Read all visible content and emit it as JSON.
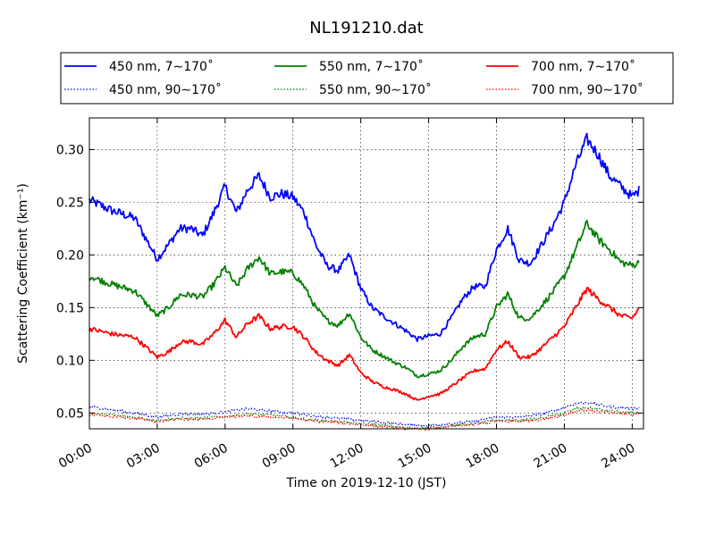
{
  "chart_data": {
    "type": "line",
    "title": "NL191210.dat",
    "xlabel": "Time on 2019-12-10 (JST)",
    "ylabel": "Scattering Coefficient (km⁻¹)",
    "xlim": [
      "00:00",
      "24:30"
    ],
    "ylim": [
      0.035,
      0.33
    ],
    "xticks": [
      "00:00",
      "03:00",
      "06:00",
      "09:00",
      "12:00",
      "15:00",
      "18:00",
      "21:00",
      "24:00"
    ],
    "yticks": [
      "0.05",
      "0.10",
      "0.15",
      "0.20",
      "0.25",
      "0.30"
    ],
    "grid": true,
    "legend_position": "top",
    "series": [
      {
        "name": "450 nm, 7∼170˚",
        "color": "#0000ff",
        "style": "solid",
        "x": [
          "00:00",
          "01:00",
          "02:00",
          "03:00",
          "03:30",
          "04:00",
          "04:30",
          "05:00",
          "05:30",
          "06:00",
          "06:30",
          "07:00",
          "07:30",
          "08:00",
          "08:30",
          "09:00",
          "09:30",
          "10:00",
          "10:30",
          "11:00",
          "11:30",
          "12:00",
          "12:30",
          "13:00",
          "13:30",
          "14:00",
          "14:30",
          "15:00",
          "15:30",
          "16:00",
          "16:30",
          "17:00",
          "17:30",
          "18:00",
          "18:30",
          "19:00",
          "19:30",
          "20:00",
          "20:30",
          "21:00",
          "21:30",
          "22:00",
          "22:30",
          "23:00",
          "23:30",
          "24:00",
          "24:20"
        ],
        "y": [
          0.252,
          0.242,
          0.235,
          0.196,
          0.21,
          0.225,
          0.225,
          0.218,
          0.24,
          0.265,
          0.24,
          0.262,
          0.275,
          0.255,
          0.258,
          0.255,
          0.24,
          0.21,
          0.19,
          0.185,
          0.2,
          0.168,
          0.15,
          0.142,
          0.135,
          0.128,
          0.12,
          0.123,
          0.125,
          0.14,
          0.158,
          0.17,
          0.17,
          0.205,
          0.225,
          0.195,
          0.192,
          0.21,
          0.228,
          0.25,
          0.285,
          0.31,
          0.295,
          0.275,
          0.265,
          0.255,
          0.262
        ]
      },
      {
        "name": "550 nm, 7∼170˚",
        "color": "#008000",
        "style": "solid",
        "x": [
          "00:00",
          "01:00",
          "02:00",
          "03:00",
          "03:30",
          "04:00",
          "04:30",
          "05:00",
          "05:30",
          "06:00",
          "06:30",
          "07:00",
          "07:30",
          "08:00",
          "08:30",
          "09:00",
          "09:30",
          "10:00",
          "10:30",
          "11:00",
          "11:30",
          "12:00",
          "12:30",
          "13:00",
          "13:30",
          "14:00",
          "14:30",
          "15:00",
          "15:30",
          "16:00",
          "16:30",
          "17:00",
          "17:30",
          "18:00",
          "18:30",
          "19:00",
          "19:30",
          "20:00",
          "20:30",
          "21:00",
          "21:30",
          "22:00",
          "22:30",
          "23:00",
          "23:30",
          "24:00",
          "24:20"
        ],
        "y": [
          0.18,
          0.172,
          0.166,
          0.142,
          0.15,
          0.162,
          0.162,
          0.16,
          0.172,
          0.188,
          0.17,
          0.187,
          0.198,
          0.182,
          0.184,
          0.183,
          0.17,
          0.15,
          0.138,
          0.133,
          0.145,
          0.122,
          0.11,
          0.104,
          0.098,
          0.093,
          0.085,
          0.087,
          0.09,
          0.1,
          0.113,
          0.122,
          0.125,
          0.15,
          0.163,
          0.14,
          0.14,
          0.152,
          0.165,
          0.18,
          0.205,
          0.23,
          0.215,
          0.205,
          0.193,
          0.19,
          0.193
        ]
      },
      {
        "name": "700 nm, 7∼170˚",
        "color": "#ff0000",
        "style": "solid",
        "x": [
          "00:00",
          "01:00",
          "02:00",
          "03:00",
          "03:30",
          "04:00",
          "04:30",
          "05:00",
          "05:30",
          "06:00",
          "06:30",
          "07:00",
          "07:30",
          "08:00",
          "08:30",
          "09:00",
          "09:30",
          "10:00",
          "10:30",
          "11:00",
          "11:30",
          "12:00",
          "12:30",
          "13:00",
          "13:30",
          "14:00",
          "14:30",
          "15:00",
          "15:30",
          "16:00",
          "16:30",
          "17:00",
          "17:30",
          "18:00",
          "18:30",
          "19:00",
          "19:30",
          "20:00",
          "20:30",
          "21:00",
          "21:30",
          "22:00",
          "22:30",
          "23:00",
          "23:30",
          "24:00",
          "24:20"
        ],
        "y": [
          0.13,
          0.125,
          0.122,
          0.103,
          0.108,
          0.117,
          0.118,
          0.115,
          0.125,
          0.138,
          0.122,
          0.135,
          0.142,
          0.13,
          0.132,
          0.132,
          0.122,
          0.108,
          0.1,
          0.095,
          0.105,
          0.088,
          0.08,
          0.075,
          0.072,
          0.068,
          0.062,
          0.066,
          0.068,
          0.075,
          0.083,
          0.09,
          0.092,
          0.11,
          0.118,
          0.103,
          0.103,
          0.112,
          0.122,
          0.132,
          0.15,
          0.168,
          0.158,
          0.15,
          0.142,
          0.14,
          0.15
        ]
      },
      {
        "name": "450 nm, 90∼170˚",
        "color": "#0000ff",
        "style": "dotted",
        "x": [
          "00:00",
          "02:00",
          "03:00",
          "04:00",
          "05:00",
          "06:00",
          "07:00",
          "08:00",
          "09:00",
          "10:00",
          "11:00",
          "12:00",
          "13:00",
          "14:00",
          "15:00",
          "16:00",
          "17:00",
          "18:00",
          "19:00",
          "20:00",
          "21:00",
          "21:30",
          "22:00",
          "23:00",
          "24:00",
          "24:20"
        ],
        "y": [
          0.056,
          0.05,
          0.046,
          0.049,
          0.049,
          0.051,
          0.054,
          0.052,
          0.05,
          0.047,
          0.045,
          0.043,
          0.041,
          0.039,
          0.038,
          0.04,
          0.042,
          0.046,
          0.046,
          0.049,
          0.055,
          0.059,
          0.06,
          0.056,
          0.054,
          0.055
        ]
      },
      {
        "name": "550 nm, 90∼170˚",
        "color": "#008000",
        "style": "dotted",
        "x": [
          "00:00",
          "02:00",
          "03:00",
          "04:00",
          "05:00",
          "06:00",
          "07:00",
          "08:00",
          "09:00",
          "10:00",
          "11:00",
          "12:00",
          "13:00",
          "14:00",
          "15:00",
          "16:00",
          "17:00",
          "18:00",
          "19:00",
          "20:00",
          "21:00",
          "21:30",
          "22:00",
          "23:00",
          "24:00",
          "24:20"
        ],
        "y": [
          0.05,
          0.046,
          0.043,
          0.045,
          0.045,
          0.047,
          0.049,
          0.048,
          0.046,
          0.043,
          0.042,
          0.04,
          0.038,
          0.036,
          0.036,
          0.038,
          0.04,
          0.043,
          0.043,
          0.045,
          0.05,
          0.054,
          0.055,
          0.052,
          0.05,
          0.051
        ]
      },
      {
        "name": "700 nm, 90∼170˚",
        "color": "#ff0000",
        "style": "dotted",
        "x": [
          "00:00",
          "02:00",
          "03:00",
          "04:00",
          "05:00",
          "06:00",
          "07:00",
          "08:00",
          "09:00",
          "10:00",
          "11:00",
          "12:00",
          "13:00",
          "14:00",
          "15:00",
          "16:00",
          "17:00",
          "18:00",
          "19:00",
          "20:00",
          "21:00",
          "21:30",
          "22:00",
          "23:00",
          "24:00",
          "24:20"
        ],
        "y": [
          0.048,
          0.045,
          0.042,
          0.044,
          0.044,
          0.046,
          0.047,
          0.046,
          0.045,
          0.042,
          0.041,
          0.039,
          0.037,
          0.035,
          0.035,
          0.037,
          0.039,
          0.042,
          0.042,
          0.044,
          0.048,
          0.052,
          0.053,
          0.05,
          0.049,
          0.049
        ]
      }
    ]
  }
}
